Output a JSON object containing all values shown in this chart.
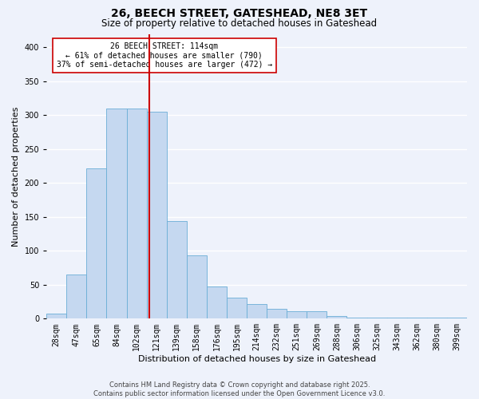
{
  "title": "26, BEECH STREET, GATESHEAD, NE8 3ET",
  "subtitle": "Size of property relative to detached houses in Gateshead",
  "xlabel": "Distribution of detached houses by size in Gateshead",
  "ylabel": "Number of detached properties",
  "bar_labels": [
    "28sqm",
    "47sqm",
    "65sqm",
    "84sqm",
    "102sqm",
    "121sqm",
    "139sqm",
    "158sqm",
    "176sqm",
    "195sqm",
    "214sqm",
    "232sqm",
    "251sqm",
    "269sqm",
    "288sqm",
    "306sqm",
    "325sqm",
    "343sqm",
    "362sqm",
    "380sqm",
    "399sqm"
  ],
  "bar_values": [
    8,
    65,
    222,
    310,
    310,
    305,
    144,
    93,
    48,
    31,
    22,
    15,
    11,
    11,
    4,
    1,
    2,
    1,
    1,
    1,
    1
  ],
  "bar_color": "#c5d8f0",
  "bar_edge_color": "#6aaed6",
  "ylim": [
    0,
    420
  ],
  "yticks": [
    0,
    50,
    100,
    150,
    200,
    250,
    300,
    350,
    400
  ],
  "property_line_x": 4,
  "property_line_color": "#cc0000",
  "bin_width": 19,
  "annotation_text": "26 BEECH STREET: 114sqm\n← 61% of detached houses are smaller (790)\n37% of semi-detached houses are larger (472) →",
  "annotation_box_color": "#ffffff",
  "annotation_box_edge": "#cc0000",
  "footer_line1": "Contains HM Land Registry data © Crown copyright and database right 2025.",
  "footer_line2": "Contains public sector information licensed under the Open Government Licence v3.0.",
  "background_color": "#eef2fb",
  "grid_color": "#ffffff",
  "title_fontsize": 10,
  "subtitle_fontsize": 8.5,
  "axis_label_fontsize": 8,
  "tick_fontsize": 7,
  "footer_fontsize": 6,
  "annot_fontsize": 7
}
